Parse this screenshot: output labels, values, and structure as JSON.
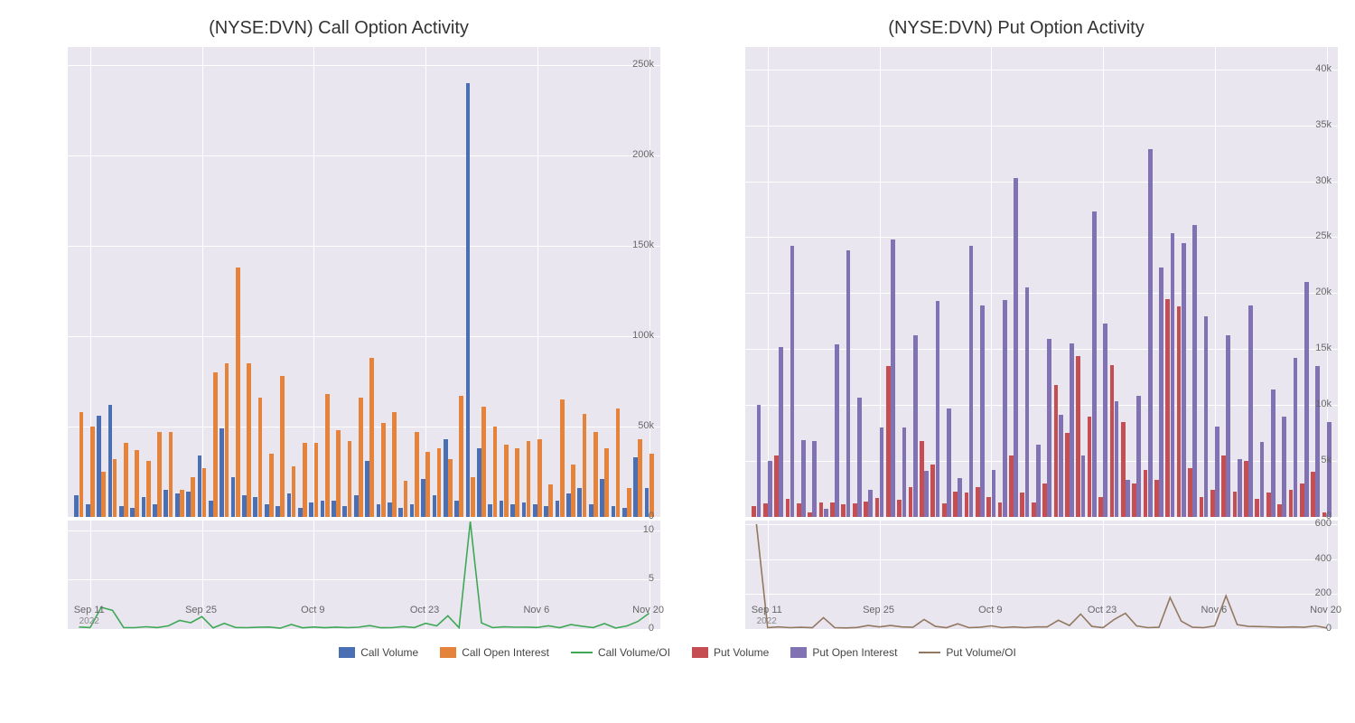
{
  "figure": {
    "background": "#ffffff",
    "plot_bg": "#e9e6f0",
    "grid_color": "#ffffff",
    "title_fontsize": 20,
    "tick_fontsize": 11,
    "tick_color": "#666666"
  },
  "x_axis": {
    "n_points": 52,
    "ticks": [
      {
        "idx": 2,
        "label": "Sep 11",
        "year": "2022"
      },
      {
        "idx": 12,
        "label": "Sep 25"
      },
      {
        "idx": 22,
        "label": "Oct 9"
      },
      {
        "idx": 32,
        "label": "Oct 23"
      },
      {
        "idx": 42,
        "label": "Nov 6"
      },
      {
        "idx": 52,
        "label": "Nov 20"
      }
    ]
  },
  "colors": {
    "call_volume": "#4a6fb3",
    "call_oi": "#e5833a",
    "call_ratio": "#3fa856",
    "put_volume": "#c44e52",
    "put_oi": "#8172b3",
    "put_ratio": "#937860"
  },
  "left": {
    "title": "(NYSE:DVN) Call Option Activity",
    "main": {
      "ylim": [
        0,
        260000
      ],
      "yticks": [
        0,
        50000,
        100000,
        150000,
        200000,
        250000
      ],
      "ytick_labels": [
        "0",
        "50k",
        "100k",
        "150k",
        "200k",
        "250k"
      ],
      "series": {
        "call_volume": [
          12000,
          7000,
          56000,
          62000,
          6000,
          5000,
          11000,
          7000,
          15000,
          13000,
          14000,
          34000,
          9000,
          49000,
          22000,
          12000,
          11000,
          7000,
          6000,
          13000,
          5000,
          8000,
          9000,
          9000,
          6000,
          12000,
          31000,
          7000,
          8000,
          5000,
          7000,
          21000,
          12000,
          43000,
          9000,
          240000,
          38000,
          7000,
          9000,
          7000,
          8000,
          7000,
          6000,
          9000,
          13000,
          16000,
          7000,
          21000,
          6000,
          5000,
          33000,
          16000
        ],
        "call_oi": [
          58000,
          50000,
          25000,
          32000,
          41000,
          37000,
          31000,
          47000,
          47000,
          15000,
          22000,
          27000,
          80000,
          85000,
          138000,
          85000,
          66000,
          35000,
          78000,
          28000,
          41000,
          41000,
          68000,
          48000,
          42000,
          66000,
          88000,
          52000,
          58000,
          20000,
          47000,
          36000,
          38000,
          32000,
          67000,
          22000,
          61000,
          50000,
          40000,
          38000,
          42000,
          43000,
          18000,
          65000,
          29000,
          57000,
          47000,
          38000,
          60000,
          16000,
          43000,
          35000
        ]
      }
    },
    "sub": {
      "ylim": [
        0,
        11
      ],
      "yticks": [
        0,
        5,
        10
      ],
      "series": [
        0.2,
        0.15,
        2.2,
        1.9,
        0.15,
        0.14,
        0.23,
        0.15,
        0.32,
        0.87,
        0.64,
        1.26,
        0.11,
        0.58,
        0.16,
        0.14,
        0.17,
        0.2,
        0.08,
        0.46,
        0.12,
        0.2,
        0.13,
        0.19,
        0.14,
        0.18,
        0.35,
        0.13,
        0.14,
        0.25,
        0.15,
        0.58,
        0.32,
        1.34,
        0.13,
        10.9,
        0.62,
        0.14,
        0.22,
        0.18,
        0.19,
        0.16,
        0.33,
        0.14,
        0.45,
        0.28,
        0.15,
        0.55,
        0.1,
        0.31,
        0.77,
        1.6
      ]
    }
  },
  "right": {
    "title": "(NYSE:DVN) Put Option Activity",
    "main": {
      "ylim": [
        0,
        42000
      ],
      "yticks": [
        0,
        5000,
        10000,
        15000,
        20000,
        25000,
        30000,
        35000,
        40000
      ],
      "ytick_labels": [
        "0",
        "5k",
        "10k",
        "15k",
        "20k",
        "25k",
        "30k",
        "35k",
        "40k"
      ],
      "series": {
        "put_volume": [
          1000,
          1200,
          5500,
          1600,
          1200,
          400,
          1300,
          1300,
          1100,
          1200,
          1400,
          1700,
          13500,
          1500,
          2700,
          6800,
          4700,
          1200,
          2300,
          2200,
          2700,
          1800,
          1300,
          5500,
          2200,
          1300,
          3000,
          11800,
          7500,
          14400,
          9000,
          1800,
          13600,
          8500,
          3000,
          4200,
          3300,
          19500,
          18800,
          4400,
          1800,
          2400,
          5500,
          2300,
          5000,
          1600,
          2200,
          1100,
          2400,
          3000,
          4000,
          400
        ],
        "put_oi": [
          10000,
          5000,
          15200,
          24200,
          6900,
          6800,
          700,
          15400,
          23800,
          10700,
          2400,
          8000,
          24800,
          8000,
          16200,
          4100,
          19300,
          9700,
          3500,
          24200,
          18900,
          4200,
          19400,
          30300,
          20500,
          6500,
          15900,
          9100,
          15500,
          5500,
          27300,
          17300,
          10300,
          3300,
          10800,
          32900,
          22300,
          25400,
          24500,
          26100,
          17900,
          8100,
          16200,
          5200,
          18900,
          6700,
          11400,
          9000,
          14200,
          21000,
          13500,
          8500
        ]
      }
    },
    "sub": {
      "ylim": [
        0,
        620
      ],
      "yticks": [
        0,
        200,
        400,
        600
      ],
      "series": [
        600,
        8,
        12,
        8,
        10,
        7,
        65,
        8,
        6,
        9,
        20,
        12,
        20,
        12,
        10,
        55,
        15,
        8,
        30,
        8,
        10,
        18,
        8,
        12,
        8,
        12,
        12,
        50,
        20,
        85,
        15,
        8,
        55,
        90,
        18,
        8,
        10,
        180,
        45,
        10,
        8,
        18,
        190,
        25,
        15,
        14,
        12,
        10,
        12,
        10,
        18,
        6
      ]
    }
  },
  "legend": [
    {
      "type": "swatch",
      "color_key": "call_volume",
      "label": "Call Volume"
    },
    {
      "type": "swatch",
      "color_key": "call_oi",
      "label": "Call Open Interest"
    },
    {
      "type": "line",
      "color_key": "call_ratio",
      "label": "Call Volume/OI"
    },
    {
      "type": "swatch",
      "color_key": "put_volume",
      "label": "Put Volume"
    },
    {
      "type": "swatch",
      "color_key": "put_oi",
      "label": "Put Open Interest"
    },
    {
      "type": "line",
      "color_key": "put_ratio",
      "label": "Put Volume/OI"
    }
  ]
}
